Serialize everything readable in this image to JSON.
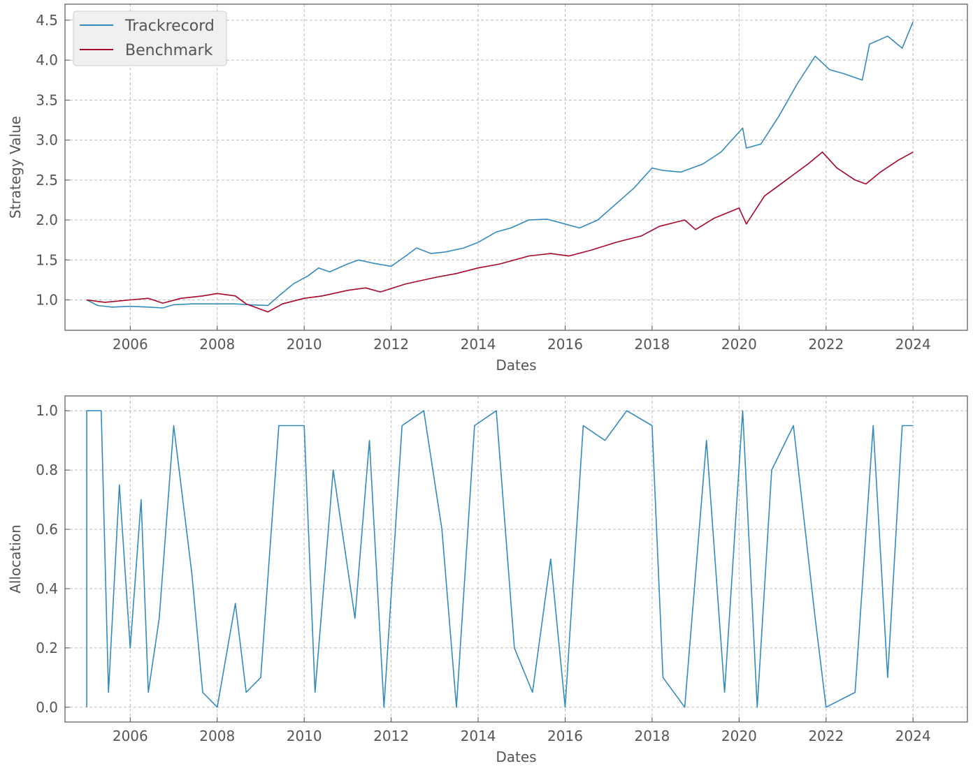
{
  "chart_data": [
    {
      "type": "line",
      "xlabel": "Dates",
      "ylabel": "Strategy Value",
      "x_ticks": [
        "2006",
        "2008",
        "2010",
        "2012",
        "2014",
        "2016",
        "2018",
        "2020",
        "2022",
        "2024"
      ],
      "y_ticks": [
        "1.0",
        "1.5",
        "2.0",
        "2.5",
        "3.0",
        "3.5",
        "4.0",
        "4.5"
      ],
      "xlim": [
        "2004-07",
        "2025-04"
      ],
      "ylim": [
        0.62,
        4.7
      ],
      "grid": true,
      "legend": "top-left",
      "series": [
        {
          "name": "Trackrecord",
          "color": "#348abd",
          "points": [
            [
              "2005-01",
              1.0
            ],
            [
              "2005-04",
              0.93
            ],
            [
              "2005-08",
              0.91
            ],
            [
              "2006-01",
              0.92
            ],
            [
              "2006-06",
              0.91
            ],
            [
              "2006-10",
              0.9
            ],
            [
              "2007-01",
              0.94
            ],
            [
              "2007-06",
              0.95
            ],
            [
              "2008-01",
              0.95
            ],
            [
              "2008-06",
              0.95
            ],
            [
              "2008-10",
              0.94
            ],
            [
              "2009-03",
              0.93
            ],
            [
              "2009-06",
              1.05
            ],
            [
              "2009-10",
              1.2
            ],
            [
              "2010-02",
              1.3
            ],
            [
              "2010-05",
              1.4
            ],
            [
              "2010-08",
              1.35
            ],
            [
              "2011-01",
              1.45
            ],
            [
              "2011-04",
              1.5
            ],
            [
              "2011-08",
              1.46
            ],
            [
              "2012-01",
              1.42
            ],
            [
              "2012-05",
              1.55
            ],
            [
              "2012-08",
              1.65
            ],
            [
              "2012-12",
              1.58
            ],
            [
              "2013-04",
              1.6
            ],
            [
              "2013-09",
              1.65
            ],
            [
              "2014-01",
              1.72
            ],
            [
              "2014-06",
              1.85
            ],
            [
              "2014-10",
              1.9
            ],
            [
              "2015-03",
              2.0
            ],
            [
              "2015-08",
              2.01
            ],
            [
              "2016-01",
              1.95
            ],
            [
              "2016-05",
              1.9
            ],
            [
              "2016-10",
              2.0
            ],
            [
              "2017-03",
              2.2
            ],
            [
              "2017-08",
              2.4
            ],
            [
              "2018-01",
              2.65
            ],
            [
              "2018-04",
              2.62
            ],
            [
              "2018-09",
              2.6
            ],
            [
              "2019-03",
              2.7
            ],
            [
              "2019-08",
              2.85
            ],
            [
              "2020-02",
              3.15
            ],
            [
              "2020-03",
              2.9
            ],
            [
              "2020-07",
              2.95
            ],
            [
              "2020-12",
              3.3
            ],
            [
              "2021-05",
              3.7
            ],
            [
              "2021-10",
              4.05
            ],
            [
              "2022-02",
              3.88
            ],
            [
              "2022-06",
              3.83
            ],
            [
              "2022-11",
              3.75
            ],
            [
              "2023-01",
              4.2
            ],
            [
              "2023-06",
              4.3
            ],
            [
              "2023-10",
              4.15
            ],
            [
              "2024-01",
              4.48
            ]
          ]
        },
        {
          "name": "Benchmark",
          "color": "#a60628",
          "points": [
            [
              "2005-01",
              1.0
            ],
            [
              "2005-06",
              0.97
            ],
            [
              "2006-01",
              1.0
            ],
            [
              "2006-06",
              1.02
            ],
            [
              "2006-10",
              0.96
            ],
            [
              "2007-03",
              1.02
            ],
            [
              "2007-09",
              1.05
            ],
            [
              "2008-01",
              1.08
            ],
            [
              "2008-06",
              1.05
            ],
            [
              "2008-09",
              0.95
            ],
            [
              "2009-03",
              0.85
            ],
            [
              "2009-07",
              0.95
            ],
            [
              "2010-01",
              1.02
            ],
            [
              "2010-06",
              1.05
            ],
            [
              "2011-01",
              1.12
            ],
            [
              "2011-06",
              1.15
            ],
            [
              "2011-10",
              1.1
            ],
            [
              "2012-05",
              1.2
            ],
            [
              "2013-01",
              1.28
            ],
            [
              "2013-07",
              1.33
            ],
            [
              "2014-01",
              1.4
            ],
            [
              "2014-07",
              1.45
            ],
            [
              "2015-03",
              1.55
            ],
            [
              "2015-09",
              1.58
            ],
            [
              "2016-02",
              1.55
            ],
            [
              "2016-08",
              1.62
            ],
            [
              "2017-03",
              1.72
            ],
            [
              "2017-10",
              1.8
            ],
            [
              "2018-03",
              1.92
            ],
            [
              "2018-10",
              2.0
            ],
            [
              "2019-01",
              1.88
            ],
            [
              "2019-06",
              2.02
            ],
            [
              "2020-01",
              2.15
            ],
            [
              "2020-03",
              1.95
            ],
            [
              "2020-08",
              2.3
            ],
            [
              "2021-02",
              2.5
            ],
            [
              "2021-08",
              2.7
            ],
            [
              "2021-12",
              2.85
            ],
            [
              "2022-04",
              2.65
            ],
            [
              "2022-09",
              2.5
            ],
            [
              "2022-12",
              2.45
            ],
            [
              "2023-04",
              2.6
            ],
            [
              "2023-09",
              2.75
            ],
            [
              "2024-01",
              2.85
            ]
          ]
        }
      ]
    },
    {
      "type": "line",
      "xlabel": "Dates",
      "ylabel": "Allocation",
      "x_ticks": [
        "2006",
        "2008",
        "2010",
        "2012",
        "2014",
        "2016",
        "2018",
        "2020",
        "2022",
        "2024"
      ],
      "y_ticks": [
        "0.0",
        "0.2",
        "0.4",
        "0.6",
        "0.8",
        "1.0"
      ],
      "xlim": [
        "2004-07",
        "2025-04"
      ],
      "ylim": [
        -0.05,
        1.05
      ],
      "grid": true,
      "series": [
        {
          "name": "",
          "color": "#348abd",
          "points": [
            [
              "2005-01",
              0.0
            ],
            [
              "2005-01",
              1.0
            ],
            [
              "2005-05",
              1.0
            ],
            [
              "2005-07",
              0.05
            ],
            [
              "2005-10",
              0.75
            ],
            [
              "2006-01",
              0.2
            ],
            [
              "2006-04",
              0.7
            ],
            [
              "2006-06",
              0.05
            ],
            [
              "2006-09",
              0.3
            ],
            [
              "2007-01",
              0.95
            ],
            [
              "2007-06",
              0.45
            ],
            [
              "2007-09",
              0.05
            ],
            [
              "2008-01",
              0.0
            ],
            [
              "2008-06",
              0.35
            ],
            [
              "2008-09",
              0.05
            ],
            [
              "2009-01",
              0.1
            ],
            [
              "2009-06",
              0.95
            ],
            [
              "2010-01",
              0.95
            ],
            [
              "2010-04",
              0.05
            ],
            [
              "2010-09",
              0.8
            ],
            [
              "2011-03",
              0.3
            ],
            [
              "2011-07",
              0.9
            ],
            [
              "2011-11",
              0.0
            ],
            [
              "2012-04",
              0.95
            ],
            [
              "2012-10",
              1.0
            ],
            [
              "2013-03",
              0.6
            ],
            [
              "2013-07",
              0.0
            ],
            [
              "2013-12",
              0.95
            ],
            [
              "2014-06",
              1.0
            ],
            [
              "2014-11",
              0.2
            ],
            [
              "2015-04",
              0.05
            ],
            [
              "2015-09",
              0.5
            ],
            [
              "2016-01",
              0.0
            ],
            [
              "2016-06",
              0.95
            ],
            [
              "2016-12",
              0.9
            ],
            [
              "2017-06",
              1.0
            ],
            [
              "2018-01",
              0.95
            ],
            [
              "2018-04",
              0.1
            ],
            [
              "2018-10",
              0.0
            ],
            [
              "2019-04",
              0.9
            ],
            [
              "2019-09",
              0.05
            ],
            [
              "2020-02",
              1.0
            ],
            [
              "2020-06",
              0.0
            ],
            [
              "2020-10",
              0.8
            ],
            [
              "2021-04",
              0.95
            ],
            [
              "2021-10",
              0.3
            ],
            [
              "2022-01",
              0.0
            ],
            [
              "2022-09",
              0.05
            ],
            [
              "2023-02",
              0.95
            ],
            [
              "2023-06",
              0.1
            ],
            [
              "2023-10",
              0.95
            ],
            [
              "2024-01",
              0.95
            ]
          ]
        }
      ]
    }
  ]
}
